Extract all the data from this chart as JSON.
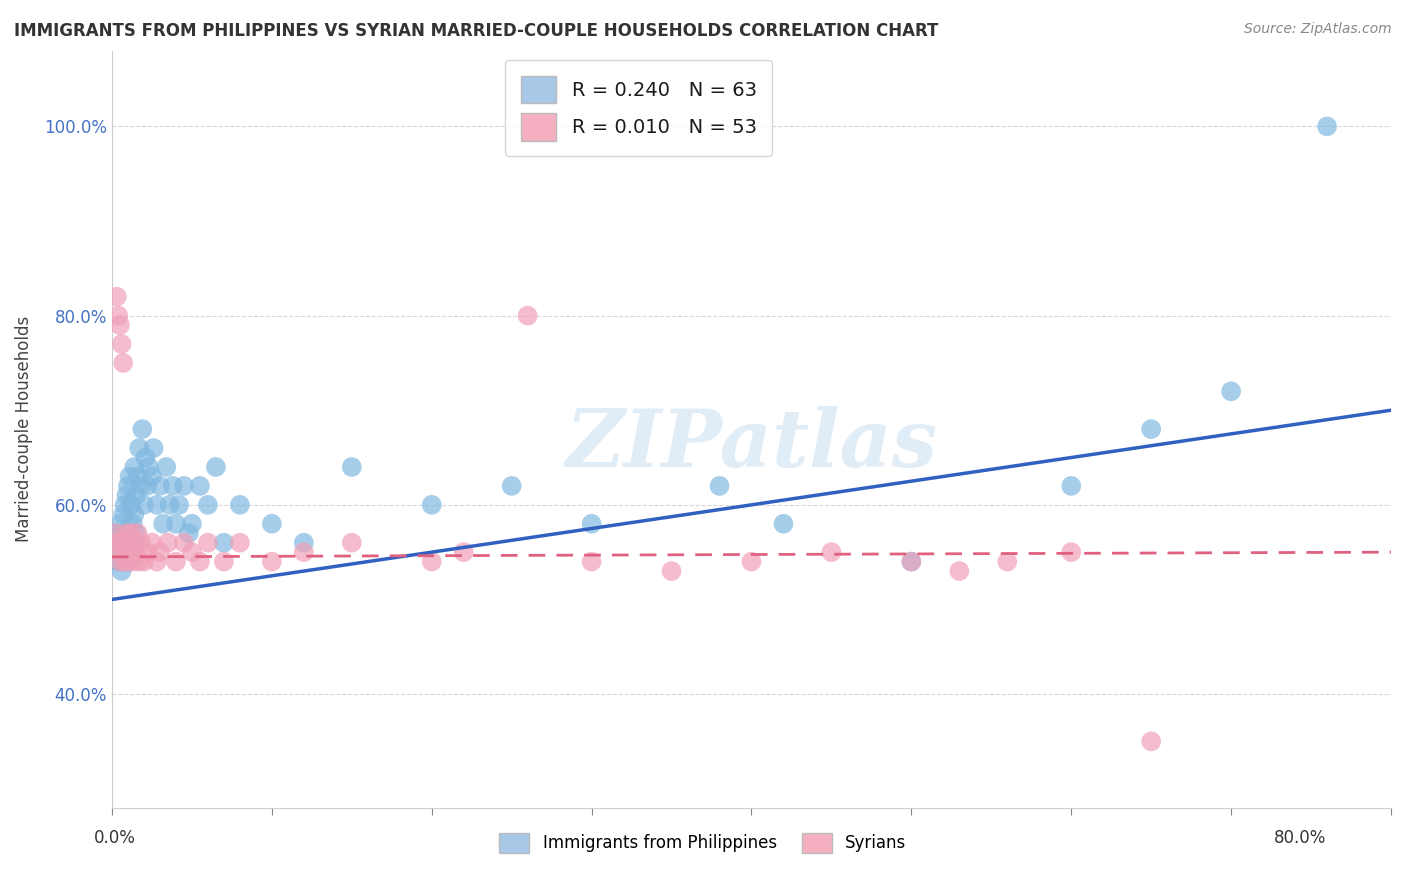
{
  "title": "IMMIGRANTS FROM PHILIPPINES VS SYRIAN MARRIED-COUPLE HOUSEHOLDS CORRELATION CHART",
  "source": "Source: ZipAtlas.com",
  "ylabel": "Married-couple Households",
  "legend1_label": "R = 0.240   N = 63",
  "legend2_label": "R = 0.010   N = 53",
  "legend1_color": "#a8c8e8",
  "legend2_color": "#f4b0c0",
  "watermark": "ZIPatlas",
  "phil_color": "#80b8e0",
  "syr_color": "#f0a0b8",
  "phil_line_color": "#3060c0",
  "syr_line_color": "#e06080",
  "background_color": "#ffffff",
  "xlim": [
    0.0,
    0.8
  ],
  "ylim": [
    0.28,
    1.08
  ],
  "phil_scatter_x": [
    0.002,
    0.003,
    0.004,
    0.005,
    0.005,
    0.006,
    0.007,
    0.007,
    0.008,
    0.008,
    0.009,
    0.009,
    0.01,
    0.01,
    0.011,
    0.011,
    0.012,
    0.012,
    0.013,
    0.013,
    0.014,
    0.014,
    0.015,
    0.015,
    0.016,
    0.017,
    0.018,
    0.019,
    0.02,
    0.021,
    0.022,
    0.023,
    0.025,
    0.026,
    0.028,
    0.03,
    0.032,
    0.034,
    0.036,
    0.038,
    0.04,
    0.042,
    0.045,
    0.048,
    0.05,
    0.055,
    0.06,
    0.065,
    0.07,
    0.08,
    0.1,
    0.12,
    0.15,
    0.2,
    0.25,
    0.3,
    0.38,
    0.42,
    0.5,
    0.6,
    0.65,
    0.7,
    0.76
  ],
  "phil_scatter_y": [
    0.57,
    0.55,
    0.54,
    0.56,
    0.58,
    0.53,
    0.57,
    0.59,
    0.55,
    0.6,
    0.56,
    0.61,
    0.54,
    0.62,
    0.57,
    0.63,
    0.55,
    0.6,
    0.56,
    0.58,
    0.59,
    0.64,
    0.57,
    0.61,
    0.63,
    0.66,
    0.62,
    0.68,
    0.6,
    0.65,
    0.62,
    0.64,
    0.63,
    0.66,
    0.6,
    0.62,
    0.58,
    0.64,
    0.6,
    0.62,
    0.58,
    0.6,
    0.62,
    0.57,
    0.58,
    0.62,
    0.6,
    0.64,
    0.56,
    0.6,
    0.58,
    0.56,
    0.64,
    0.6,
    0.62,
    0.58,
    0.62,
    0.58,
    0.54,
    0.62,
    0.68,
    0.72,
    1.0
  ],
  "syr_scatter_x": [
    0.002,
    0.003,
    0.003,
    0.004,
    0.004,
    0.005,
    0.005,
    0.006,
    0.006,
    0.007,
    0.007,
    0.008,
    0.008,
    0.009,
    0.009,
    0.01,
    0.01,
    0.011,
    0.012,
    0.013,
    0.014,
    0.015,
    0.016,
    0.017,
    0.018,
    0.02,
    0.022,
    0.025,
    0.028,
    0.03,
    0.035,
    0.04,
    0.045,
    0.05,
    0.055,
    0.06,
    0.07,
    0.08,
    0.1,
    0.12,
    0.15,
    0.2,
    0.22,
    0.26,
    0.3,
    0.35,
    0.4,
    0.45,
    0.5,
    0.53,
    0.56,
    0.6,
    0.65
  ],
  "syr_scatter_y": [
    0.57,
    0.56,
    0.82,
    0.55,
    0.8,
    0.54,
    0.79,
    0.56,
    0.77,
    0.55,
    0.75,
    0.54,
    0.56,
    0.55,
    0.57,
    0.54,
    0.56,
    0.55,
    0.57,
    0.54,
    0.56,
    0.55,
    0.57,
    0.54,
    0.56,
    0.54,
    0.55,
    0.56,
    0.54,
    0.55,
    0.56,
    0.54,
    0.56,
    0.55,
    0.54,
    0.56,
    0.54,
    0.56,
    0.54,
    0.55,
    0.56,
    0.54,
    0.55,
    0.8,
    0.54,
    0.53,
    0.54,
    0.55,
    0.54,
    0.53,
    0.54,
    0.55,
    0.35
  ]
}
